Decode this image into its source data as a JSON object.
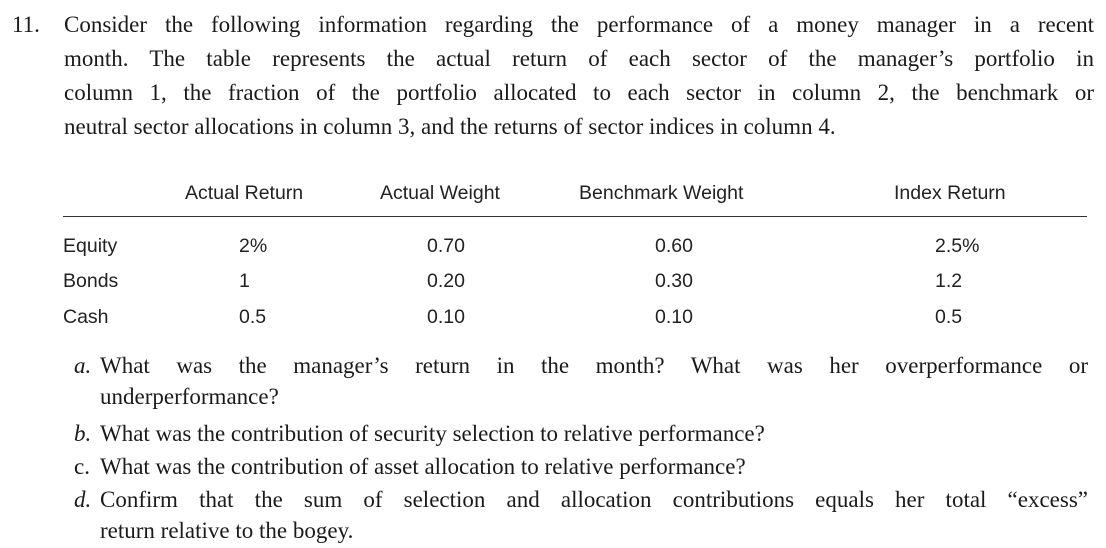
{
  "question": {
    "number": "11.",
    "lines": [
      "Consider the following information regarding the performance of a money manager in a recent",
      "month. The table represents the actual return of each sector of the manager’s portfolio in",
      "column 1, the fraction of the portfolio allocated to each sector in column 2, the benchmark or",
      "neutral sector allocations in column 3, and the returns of sector indices in column 4."
    ]
  },
  "table": {
    "headers": [
      "Actual Return",
      "Actual Weight",
      "Benchmark Weight",
      "Index Return"
    ],
    "rows": [
      {
        "label": "Equity",
        "cells": [
          "2%",
          "0.70",
          "0.60",
          "2.5%"
        ]
      },
      {
        "label": "Bonds",
        "cells": [
          "1",
          "0.20",
          "0.30",
          "1.2"
        ]
      },
      {
        "label": "Cash",
        "cells": [
          "0.5",
          "0.10",
          "0.10",
          "0.5"
        ]
      }
    ]
  },
  "parts": [
    {
      "letter": "a.",
      "lines": [
        "What was the manager’s return in the month? What was her overperformance or",
        "underperformance?"
      ]
    },
    {
      "letter": "b.",
      "lines": [
        "What was the contribution of security selection to relative performance?"
      ]
    },
    {
      "letter": "c.",
      "lines": [
        "What was the contribution of asset allocation to relative performance?"
      ]
    },
    {
      "letter": "d.",
      "lines": [
        "Confirm that the sum of selection and allocation contributions equals her total “excess”",
        "return relative to the bogey."
      ]
    }
  ]
}
